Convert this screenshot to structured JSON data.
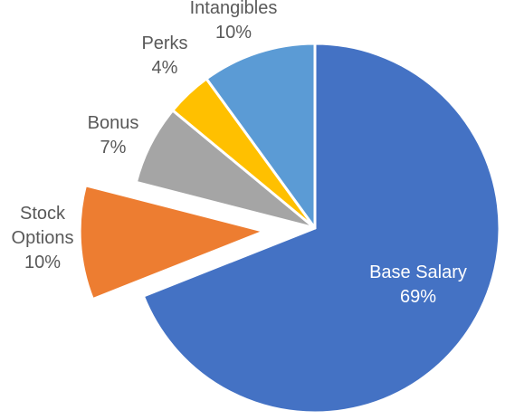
{
  "chart_data": {
    "type": "pie",
    "start_angle_deg": 0,
    "direction": "clockwise",
    "slices": [
      {
        "label": "Base Salary",
        "line1": "Base Salary",
        "line2": "",
        "pct_label": "69%",
        "value": 69,
        "color": "#4472C4",
        "label_color": "#ffffff",
        "exploded": false
      },
      {
        "label": "Stock Options",
        "line1": "Stock",
        "line2": "Options",
        "pct_label": "10%",
        "value": 10,
        "color": "#ED7D31",
        "label_color": "#595959",
        "exploded": true
      },
      {
        "label": "Bonus",
        "line1": "Bonus",
        "line2": "",
        "pct_label": "7%",
        "value": 7,
        "color": "#A5A5A5",
        "label_color": "#595959",
        "exploded": false
      },
      {
        "label": "Perks",
        "line1": "Perks",
        "line2": "",
        "pct_label": "4%",
        "value": 4,
        "color": "#FFC000",
        "label_color": "#595959",
        "exploded": false
      },
      {
        "label": "Intangibles",
        "line1": "Intangibles",
        "line2": "",
        "pct_label": "10%",
        "value": 10,
        "color": "#5B9BD5",
        "label_color": "#595959",
        "exploded": false
      }
    ]
  }
}
